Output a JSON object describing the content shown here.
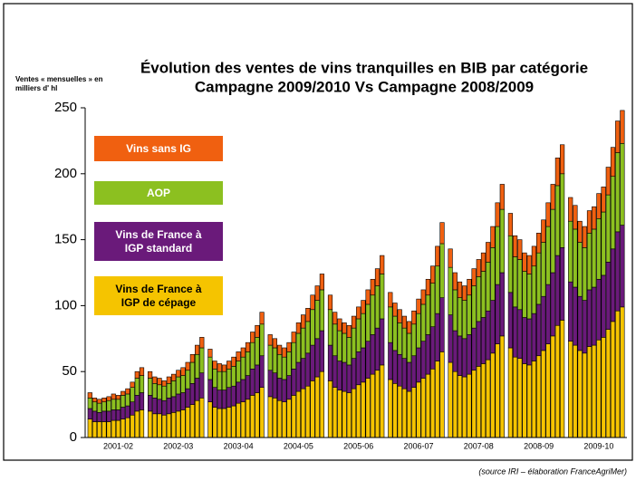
{
  "chart_data": {
    "type": "stacked_bar",
    "title": "Évolution des ventes de vins tranquilles en BIB par catégorie",
    "subtitle": "Campagne 2009/2010 Vs Campagne 2008/2009",
    "y_label": "Ventes « mensuelles » en milliers d' hl",
    "source": "(source IRI – élaboration FranceAgriMer)",
    "categories": [
      null,
      null,
      null,
      null,
      null,
      null,
      "2001-02",
      null,
      null,
      null,
      null,
      null,
      null,
      null,
      null,
      null,
      null,
      null,
      "2002-03",
      null,
      null,
      null,
      null,
      null,
      null,
      null,
      null,
      null,
      null,
      null,
      "2003-04",
      null,
      null,
      null,
      null,
      null,
      null,
      null,
      null,
      null,
      null,
      null,
      "2004-05",
      null,
      null,
      null,
      null,
      null,
      null,
      null,
      null,
      null,
      null,
      null,
      "2005-06",
      null,
      null,
      null,
      null,
      null,
      null,
      null,
      null,
      null,
      null,
      null,
      "2006-07",
      null,
      null,
      null,
      null,
      null,
      null,
      null,
      null,
      null,
      null,
      null,
      "2007-08",
      null,
      null,
      null,
      null,
      null,
      null,
      null,
      null,
      null,
      null,
      null,
      "2008-09",
      null,
      null,
      null,
      null,
      null,
      null,
      null,
      null,
      null,
      null,
      null,
      "2009-10",
      null,
      null,
      null,
      null,
      null
    ],
    "ylim": [
      0,
      250
    ],
    "yticks": [
      0,
      50,
      100,
      150,
      200,
      250
    ],
    "series": [
      {
        "name": "Vins de France à IGP de cépage",
        "color": "#f5c400",
        "values": [
          14,
          12,
          12,
          12,
          12,
          13,
          13,
          14,
          15,
          17,
          20,
          21,
          20,
          18,
          18,
          17,
          18,
          19,
          20,
          21,
          23,
          25,
          28,
          30,
          27,
          23,
          22,
          22,
          23,
          24,
          26,
          27,
          29,
          32,
          34,
          38,
          31,
          30,
          28,
          27,
          29,
          32,
          35,
          37,
          39,
          43,
          46,
          50,
          43,
          38,
          36,
          35,
          34,
          37,
          40,
          42,
          45,
          48,
          51,
          55,
          44,
          41,
          39,
          37,
          35,
          38,
          42,
          45,
          48,
          52,
          58,
          65,
          57,
          50,
          47,
          46,
          48,
          51,
          54,
          56,
          59,
          64,
          71,
          77,
          68,
          61,
          60,
          56,
          55,
          58,
          62,
          66,
          71,
          77,
          85,
          89,
          73,
          70,
          66,
          64,
          69,
          70,
          74,
          76,
          82,
          88,
          96,
          99
        ]
      },
      {
        "name": "Vins de France à IGP standard",
        "color": "#6a1a7a",
        "values": [
          8,
          8,
          7,
          8,
          8,
          8,
          8,
          9,
          9,
          10,
          12,
          13,
          12,
          12,
          11,
          11,
          12,
          12,
          13,
          13,
          14,
          16,
          17,
          19,
          17,
          15,
          14,
          14,
          15,
          15,
          16,
          17,
          18,
          20,
          21,
          24,
          20,
          19,
          17,
          17,
          18,
          20,
          22,
          23,
          25,
          27,
          29,
          31,
          27,
          24,
          22,
          22,
          21,
          23,
          25,
          26,
          28,
          30,
          32,
          35,
          28,
          25,
          24,
          23,
          22,
          24,
          26,
          28,
          30,
          32,
          36,
          41,
          36,
          31,
          30,
          29,
          30,
          32,
          34,
          35,
          37,
          40,
          45,
          48,
          42,
          38,
          37,
          35,
          35,
          36,
          39,
          41,
          45,
          48,
          53,
          55,
          45,
          44,
          41,
          40,
          43,
          44,
          46,
          47,
          51,
          55,
          60,
          62
        ]
      },
      {
        "name": "AOP",
        "color": "#8cc020",
        "values": [
          8,
          7,
          7,
          7,
          8,
          8,
          8,
          9,
          9,
          11,
          13,
          13,
          13,
          11,
          11,
          11,
          11,
          12,
          13,
          13,
          14,
          16,
          18,
          19,
          17,
          14,
          14,
          14,
          14,
          15,
          16,
          17,
          18,
          20,
          21,
          24,
          19,
          19,
          18,
          17,
          18,
          20,
          22,
          23,
          24,
          27,
          29,
          31,
          27,
          24,
          23,
          22,
          21,
          23,
          25,
          26,
          28,
          30,
          32,
          34,
          27,
          26,
          24,
          23,
          22,
          24,
          26,
          28,
          30,
          33,
          36,
          41,
          36,
          31,
          29,
          29,
          30,
          32,
          34,
          35,
          37,
          40,
          44,
          48,
          43,
          38,
          38,
          35,
          34,
          36,
          39,
          41,
          44,
          48,
          53,
          56,
          46,
          44,
          41,
          40,
          43,
          44,
          46,
          48,
          51,
          55,
          60,
          62
        ]
      },
      {
        "name": "Vins sans IG",
        "color": "#f06010",
        "values": [
          4,
          3,
          3,
          3,
          3,
          4,
          3,
          3,
          4,
          4,
          5,
          6,
          5,
          5,
          5,
          4,
          5,
          5,
          5,
          6,
          6,
          6,
          7,
          8,
          6,
          6,
          6,
          5,
          6,
          7,
          7,
          7,
          7,
          8,
          9,
          9,
          8,
          7,
          7,
          7,
          7,
          8,
          8,
          10,
          10,
          11,
          11,
          12,
          11,
          9,
          9,
          8,
          9,
          9,
          9,
          10,
          11,
          12,
          13,
          14,
          11,
          10,
          10,
          9,
          9,
          10,
          11,
          11,
          12,
          13,
          15,
          16,
          14,
          13,
          12,
          11,
          12,
          13,
          13,
          14,
          15,
          16,
          18,
          19,
          17,
          16,
          15,
          14,
          14,
          15,
          15,
          17,
          18,
          19,
          21,
          22,
          18,
          18,
          16,
          16,
          17,
          17,
          19,
          19,
          21,
          22,
          24,
          25
        ]
      }
    ]
  }
}
